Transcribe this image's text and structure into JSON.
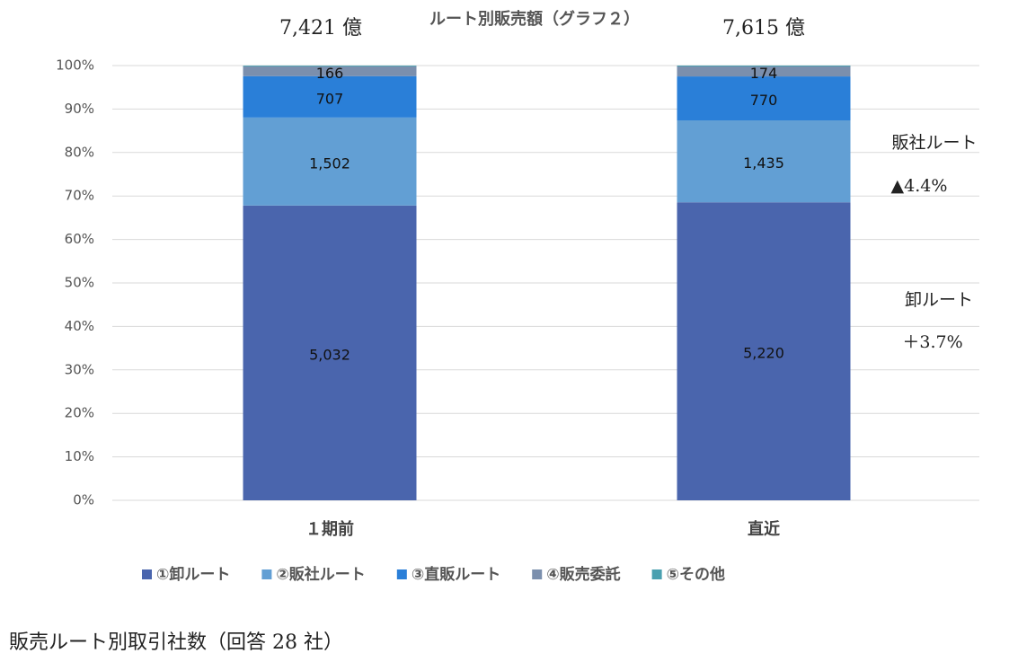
{
  "chart_data": {
    "type": "stacked_bar_100",
    "title": "ルート別販売額（グラフ２）",
    "categories": [
      "１期前",
      "直近"
    ],
    "totals": [
      {
        "value": 7421,
        "label": "7,421 億"
      },
      {
        "value": 7615,
        "label": "7,615 億"
      }
    ],
    "series": [
      {
        "name": "①卸ルート",
        "color": "#4a65ad",
        "values": [
          5032,
          5220
        ],
        "value_labels": [
          "5,032",
          "5,220"
        ]
      },
      {
        "name": "②販社ルート",
        "color": "#629fd4",
        "values": [
          1502,
          1435
        ],
        "value_labels": [
          "1,502",
          "1,435"
        ]
      },
      {
        "name": "③直販ルート",
        "color": "#2a7fd8",
        "values": [
          707,
          770
        ]
      },
      {
        "name": "④販売委託",
        "color": "#7b8fad",
        "values": [
          166,
          174
        ]
      },
      {
        "name": "⑤その他",
        "color": "#4aa0b0",
        "values": [
          14,
          16
        ]
      }
    ],
    "ylim": [
      0,
      100
    ],
    "yticks": [
      {
        "value": 0,
        "label": "0%"
      },
      {
        "value": 10,
        "label": "10%"
      },
      {
        "value": 20,
        "label": "20%"
      },
      {
        "value": 30,
        "label": "30%"
      },
      {
        "value": 40,
        "label": "40%"
      },
      {
        "value": 50,
        "label": "50%"
      },
      {
        "value": 60,
        "label": "60%"
      },
      {
        "value": 70,
        "label": "70%"
      },
      {
        "value": 80,
        "label": "80%"
      },
      {
        "value": 90,
        "label": "90%"
      },
      {
        "value": 100,
        "label": "100%"
      }
    ],
    "grid": true,
    "legend": "bottom",
    "annotations": [
      "販社ルート",
      "▲4.4%",
      "卸ルート",
      "＋3.7%"
    ]
  },
  "footer": "販売ルート別取引社数（回答 28 社）"
}
